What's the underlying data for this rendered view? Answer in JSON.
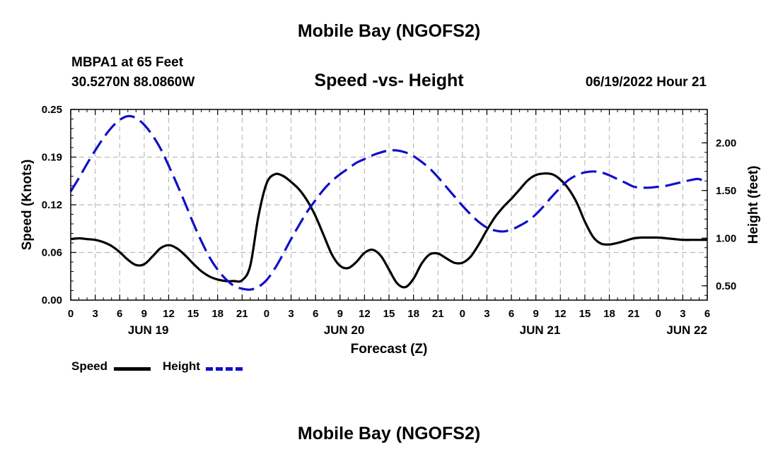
{
  "header": {
    "title_top": "Mobile Bay (NGOFS2)",
    "station": "MBPA1 at 65 Feet",
    "coordinates": "30.5270N  88.0860W",
    "subtitle": "Speed -vs- Height",
    "datetime": "06/19/2022 Hour 21",
    "title_bottom": "Mobile Bay (NGOFS2)"
  },
  "legend": {
    "speed_label": "Speed",
    "height_label": "Height"
  },
  "colors": {
    "speed": "#000000",
    "height": "#1010c8",
    "grid": "#bbbbbb"
  },
  "chart_data": {
    "type": "line",
    "xlabel": "Forecast (Z)",
    "ylabel_left": "Speed (Knots)",
    "ylabel_right": "Height (feet)",
    "x_hour_range": [
      0,
      78
    ],
    "x_tick_labels": [
      "0",
      "3",
      "6",
      "9",
      "12",
      "15",
      "18",
      "21",
      "0",
      "3",
      "6",
      "9",
      "12",
      "15",
      "18",
      "21",
      "0",
      "3",
      "6",
      "9",
      "12",
      "15",
      "18",
      "21",
      "0",
      "3",
      "6"
    ],
    "day_labels": [
      {
        "label": "JUN 19",
        "hour": 9.5
      },
      {
        "label": "JUN 20",
        "hour": 33.5
      },
      {
        "label": "JUN 21",
        "hour": 57.5
      },
      {
        "label": "JUN 22",
        "hour": 75.5
      }
    ],
    "y_left": {
      "range": [
        0,
        0.25
      ],
      "ticks": [
        "0.00",
        "0.06",
        "0.12",
        "0.19",
        "0.25"
      ]
    },
    "y_right": {
      "range": [
        0.35,
        2.35
      ],
      "ticks": [
        "0.50",
        "1.00",
        "1.50",
        "2.00"
      ]
    },
    "grid": true,
    "legend_position": "bottom-left",
    "series": [
      {
        "name": "Speed",
        "axis": "left",
        "style": "solid",
        "x": [
          0,
          1,
          2,
          3,
          4,
          5,
          6,
          7,
          8,
          9,
          10,
          11,
          12,
          13,
          14,
          15,
          16,
          17,
          18,
          19,
          20,
          21,
          22,
          23,
          24,
          25,
          26,
          27,
          28,
          29,
          30,
          31,
          32,
          33,
          34,
          35,
          36,
          37,
          38,
          39,
          40,
          41,
          42,
          43,
          44,
          45,
          46,
          47,
          48,
          49,
          50,
          51,
          52,
          53,
          54,
          55,
          56,
          57,
          58,
          59,
          60,
          61,
          62,
          63,
          64,
          65,
          66,
          67,
          68,
          69,
          70,
          71,
          72,
          73,
          74,
          75,
          76,
          77,
          78
        ],
        "y": [
          0.08,
          0.081,
          0.08,
          0.079,
          0.076,
          0.071,
          0.063,
          0.053,
          0.046,
          0.047,
          0.057,
          0.068,
          0.072,
          0.068,
          0.059,
          0.048,
          0.038,
          0.031,
          0.027,
          0.025,
          0.025,
          0.026,
          0.045,
          0.11,
          0.153,
          0.165,
          0.163,
          0.155,
          0.145,
          0.13,
          0.11,
          0.085,
          0.06,
          0.045,
          0.042,
          0.05,
          0.062,
          0.066,
          0.058,
          0.04,
          0.022,
          0.017,
          0.028,
          0.048,
          0.06,
          0.061,
          0.055,
          0.049,
          0.049,
          0.057,
          0.073,
          0.092,
          0.109,
          0.122,
          0.133,
          0.145,
          0.157,
          0.164,
          0.166,
          0.165,
          0.158,
          0.146,
          0.128,
          0.103,
          0.083,
          0.074,
          0.073,
          0.075,
          0.078,
          0.081,
          0.082,
          0.082,
          0.082,
          0.081,
          0.08,
          0.079,
          0.079,
          0.079,
          0.079
        ]
      },
      {
        "name": "Height",
        "axis": "right",
        "style": "dashed",
        "x": [
          0,
          1,
          2,
          3,
          4,
          5,
          6,
          7,
          8,
          9,
          10,
          11,
          12,
          13,
          14,
          15,
          16,
          17,
          18,
          19,
          20,
          21,
          22,
          23,
          24,
          25,
          26,
          27,
          28,
          29,
          30,
          31,
          32,
          33,
          34,
          35,
          36,
          37,
          38,
          39,
          40,
          41,
          42,
          43,
          44,
          45,
          46,
          47,
          48,
          49,
          50,
          51,
          52,
          53,
          54,
          55,
          56,
          57,
          58,
          59,
          60,
          61,
          62,
          63,
          64,
          65,
          66,
          67,
          68,
          69,
          70,
          71,
          72,
          73,
          74,
          75,
          76,
          77,
          78
        ],
        "y": [
          1.49,
          1.63,
          1.78,
          1.92,
          2.05,
          2.16,
          2.24,
          2.28,
          2.26,
          2.19,
          2.08,
          1.94,
          1.76,
          1.57,
          1.37,
          1.16,
          0.97,
          0.8,
          0.67,
          0.57,
          0.5,
          0.47,
          0.46,
          0.49,
          0.56,
          0.68,
          0.83,
          0.99,
          1.14,
          1.28,
          1.4,
          1.51,
          1.6,
          1.67,
          1.73,
          1.79,
          1.83,
          1.87,
          1.9,
          1.92,
          1.92,
          1.9,
          1.86,
          1.8,
          1.73,
          1.64,
          1.54,
          1.44,
          1.34,
          1.25,
          1.17,
          1.11,
          1.08,
          1.07,
          1.09,
          1.13,
          1.18,
          1.25,
          1.34,
          1.44,
          1.53,
          1.61,
          1.66,
          1.69,
          1.7,
          1.69,
          1.66,
          1.62,
          1.58,
          1.54,
          1.53,
          1.53,
          1.54,
          1.55,
          1.57,
          1.59,
          1.61,
          1.62,
          1.57
        ]
      }
    ]
  }
}
